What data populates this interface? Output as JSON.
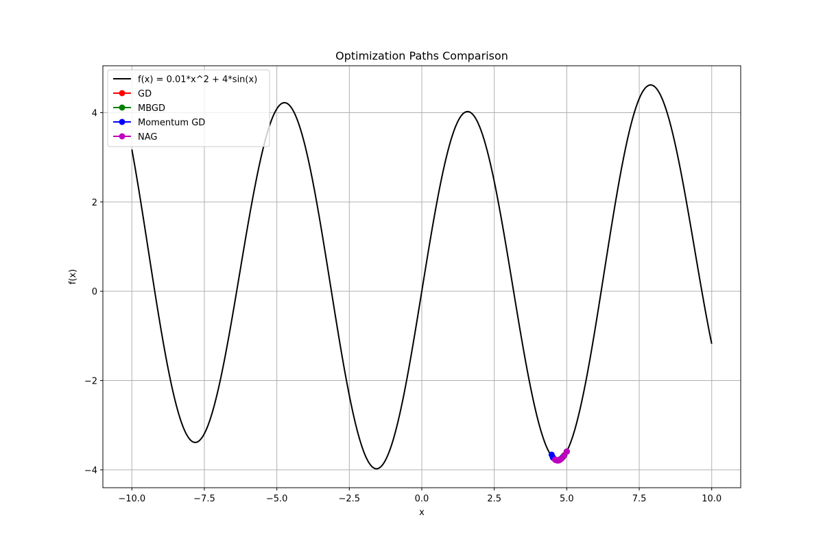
{
  "chart_data": {
    "type": "line",
    "title": "Optimization Paths Comparison",
    "xlabel": "x",
    "ylabel": "f(x)",
    "xlim": [
      -11,
      11
    ],
    "ylim": [
      -4.4,
      5.05
    ],
    "xticks": [
      -10.0,
      -7.5,
      -5.0,
      -2.5,
      0.0,
      2.5,
      5.0,
      7.5,
      10.0
    ],
    "xtick_labels": [
      "−10.0",
      "−7.5",
      "−5.0",
      "−2.5",
      "0.0",
      "2.5",
      "5.0",
      "7.5",
      "10.0"
    ],
    "yticks": [
      -4,
      -2,
      0,
      2,
      4
    ],
    "ytick_labels": [
      "−4",
      "−2",
      "0",
      "2",
      "4"
    ],
    "grid": true,
    "legend_position": "top-left",
    "function_curve": {
      "name": "f(x) = 0.01*x^2 + 4*sin(x)",
      "color": "#000000",
      "x_range": [
        -10,
        10
      ],
      "coefficients": {
        "a": 0.01,
        "b": 4
      }
    },
    "series": [
      {
        "name": "GD",
        "color": "#ff0000",
        "points": [
          {
            "x": 5.0,
            "y": -3.59
          },
          {
            "x": 4.92,
            "y": -3.67
          },
          {
            "x": 4.86,
            "y": -3.72
          },
          {
            "x": 4.81,
            "y": -3.75
          },
          {
            "x": 4.77,
            "y": -3.77
          },
          {
            "x": 4.74,
            "y": -3.78
          },
          {
            "x": 4.72,
            "y": -3.78
          }
        ]
      },
      {
        "name": "MBGD",
        "color": "#008000",
        "points": [
          {
            "x": 5.0,
            "y": -3.59
          },
          {
            "x": 4.91,
            "y": -3.68
          },
          {
            "x": 4.84,
            "y": -3.73
          },
          {
            "x": 4.79,
            "y": -3.76
          },
          {
            "x": 4.75,
            "y": -3.77
          },
          {
            "x": 4.72,
            "y": -3.78
          }
        ]
      },
      {
        "name": "Momentum GD",
        "color": "#0000ff",
        "points": [
          {
            "x": 5.0,
            "y": -3.59
          },
          {
            "x": 4.88,
            "y": -3.7
          },
          {
            "x": 4.74,
            "y": -3.78
          },
          {
            "x": 4.62,
            "y": -3.78
          },
          {
            "x": 4.53,
            "y": -3.73
          },
          {
            "x": 4.48,
            "y": -3.66
          },
          {
            "x": 4.52,
            "y": -3.72
          },
          {
            "x": 4.6,
            "y": -3.77
          },
          {
            "x": 4.68,
            "y": -3.79
          },
          {
            "x": 4.74,
            "y": -3.78
          },
          {
            "x": 4.77,
            "y": -3.77
          },
          {
            "x": 4.76,
            "y": -3.77
          },
          {
            "x": 4.73,
            "y": -3.78
          }
        ]
      },
      {
        "name": "NAG",
        "color": "#bf00bf",
        "points": [
          {
            "x": 5.0,
            "y": -3.59
          },
          {
            "x": 4.9,
            "y": -3.69
          },
          {
            "x": 4.8,
            "y": -3.76
          },
          {
            "x": 4.71,
            "y": -3.79
          },
          {
            "x": 4.64,
            "y": -3.78
          },
          {
            "x": 4.6,
            "y": -3.77
          },
          {
            "x": 4.62,
            "y": -3.78
          },
          {
            "x": 4.67,
            "y": -3.79
          },
          {
            "x": 4.72,
            "y": -3.79
          },
          {
            "x": 4.74,
            "y": -3.78
          },
          {
            "x": 4.73,
            "y": -3.78
          }
        ]
      }
    ]
  }
}
